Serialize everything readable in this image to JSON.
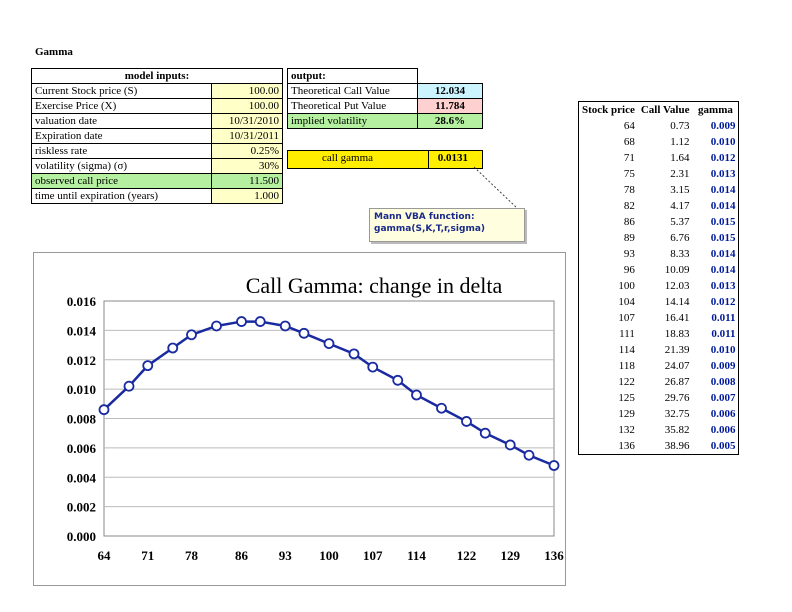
{
  "sheet": {
    "title": "Gamma"
  },
  "inputs": {
    "header": "model inputs:",
    "rows": [
      {
        "label": "Current Stock price (S)",
        "value": "100.00"
      },
      {
        "label": "Exercise Price (X)",
        "value": "100.00"
      },
      {
        "label": "valuation date",
        "value": "10/31/2010"
      },
      {
        "label": "Expiration date",
        "value": "10/31/2011"
      },
      {
        "label": "riskless rate",
        "value": "0.25%"
      },
      {
        "label": "volatility (sigma) (σ)",
        "value": "30%"
      },
      {
        "label": "observed call price",
        "value": "11.500"
      },
      {
        "label": "time until expiration (years)",
        "value": "1.000"
      }
    ]
  },
  "outputs": {
    "header": "output:",
    "rows": [
      {
        "label": "Theoretical Call Value",
        "value": "12.034"
      },
      {
        "label": "Theoretical Put Value",
        "value": "11.784"
      },
      {
        "label": "implied volatility",
        "value": "28.6%"
      }
    ]
  },
  "gamma_cell": {
    "label": "call gamma",
    "value": "0.0131"
  },
  "callout": {
    "line1": "Mann VBA function:",
    "line2": "gamma(S,K,T,r,sigma)"
  },
  "data_table": {
    "headers": [
      "Stock price",
      "Call Value",
      "gamma"
    ],
    "rows": [
      [
        "64",
        "0.73",
        "0.009"
      ],
      [
        "68",
        "1.12",
        "0.010"
      ],
      [
        "71",
        "1.64",
        "0.012"
      ],
      [
        "75",
        "2.31",
        "0.013"
      ],
      [
        "78",
        "3.15",
        "0.014"
      ],
      [
        "82",
        "4.17",
        "0.014"
      ],
      [
        "86",
        "5.37",
        "0.015"
      ],
      [
        "89",
        "6.76",
        "0.015"
      ],
      [
        "93",
        "8.33",
        "0.014"
      ],
      [
        "96",
        "10.09",
        "0.014"
      ],
      [
        "100",
        "12.03",
        "0.013"
      ],
      [
        "104",
        "14.14",
        "0.012"
      ],
      [
        "107",
        "16.41",
        "0.011"
      ],
      [
        "111",
        "18.83",
        "0.011"
      ],
      [
        "114",
        "21.39",
        "0.010"
      ],
      [
        "118",
        "24.07",
        "0.009"
      ],
      [
        "122",
        "26.87",
        "0.008"
      ],
      [
        "125",
        "29.76",
        "0.007"
      ],
      [
        "129",
        "32.75",
        "0.006"
      ],
      [
        "132",
        "35.82",
        "0.006"
      ],
      [
        "136",
        "38.96",
        "0.005"
      ]
    ]
  },
  "chart_data": {
    "type": "line",
    "title": "Call Gamma: change in delta",
    "x": [
      64,
      68,
      71,
      75,
      78,
      82,
      86,
      89,
      93,
      96,
      100,
      104,
      107,
      111,
      114,
      118,
      122,
      125,
      129,
      132,
      136
    ],
    "xticks": [
      "64",
      "71",
      "78",
      "86",
      "93",
      "100",
      "107",
      "114",
      "122",
      "129",
      "136"
    ],
    "series": [
      {
        "values": [
          0.0086,
          0.0102,
          0.0116,
          0.0128,
          0.0137,
          0.0143,
          0.0146,
          0.0146,
          0.0143,
          0.0138,
          0.0131,
          0.0124,
          0.0115,
          0.0106,
          0.0096,
          0.0087,
          0.0078,
          0.007,
          0.0062,
          0.0055,
          0.0048
        ]
      }
    ],
    "ylim": [
      0,
      0.016
    ],
    "yticks": [
      "0.000",
      "0.002",
      "0.004",
      "0.006",
      "0.008",
      "0.010",
      "0.012",
      "0.014",
      "0.016"
    ],
    "grid": true,
    "legend": "none",
    "line_color": "#1a2aa0"
  }
}
